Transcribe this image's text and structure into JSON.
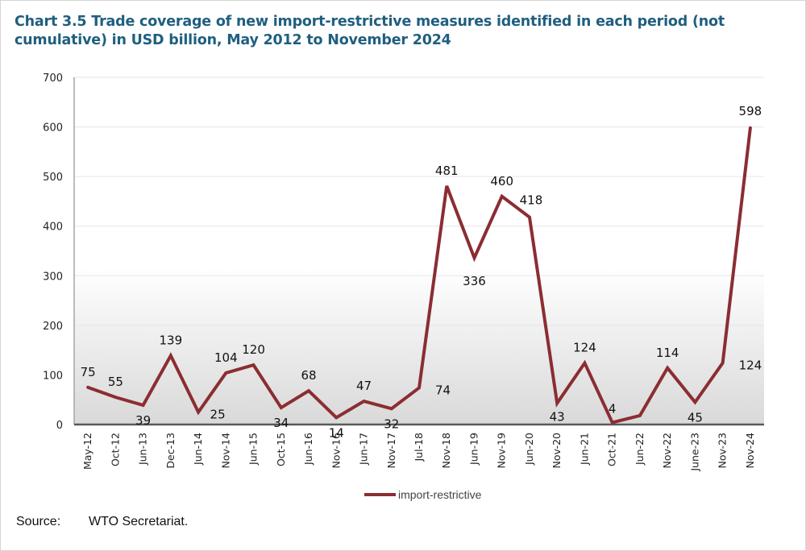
{
  "chart_data": {
    "type": "line",
    "title": "Chart 3.5 Trade coverage of new import-restrictive measures identified in each period (not cumulative) in USD billion, May 2012 to November 2024",
    "xlabel": "",
    "ylabel": "",
    "ylim": [
      0,
      700
    ],
    "yticks": [
      0,
      100,
      200,
      300,
      400,
      500,
      600,
      700
    ],
    "grid": true,
    "legend_position": "bottom",
    "categories": [
      "May-12",
      "Oct-12",
      "Jun-13",
      "Dec-13",
      "Jun-14",
      "Nov-14",
      "Jun-15",
      "Oct-15",
      "Jun-16",
      "Nov-16",
      "Jun-17",
      "Nov-17",
      "Jul-18",
      "Nov-18",
      "Jun-19",
      "Nov-19",
      "Jun-20",
      "Nov-20",
      "Jun-21",
      "Oct-21",
      "Jun-22",
      "Nov-22",
      "June-23",
      "Nov-23",
      "Nov-24"
    ],
    "series": [
      {
        "name": "import-restrictive",
        "color": "#8b2d32",
        "values": [
          75,
          55,
          39,
          139,
          25,
          104,
          120,
          34,
          68,
          14,
          47,
          32,
          74,
          481,
          336,
          460,
          418,
          43,
          124,
          4,
          18,
          114,
          45,
          124,
          598
        ],
        "labels": [
          "75",
          "55",
          "39",
          "139",
          "25",
          "104",
          "120",
          "34",
          "68",
          "14",
          "47",
          "32",
          "74",
          "481",
          "336",
          "460",
          "418",
          "43",
          "124",
          "4",
          null,
          "114",
          "45",
          "124",
          "598"
        ]
      }
    ]
  },
  "source": {
    "label": "Source:",
    "text": "WTO Secretariat."
  }
}
